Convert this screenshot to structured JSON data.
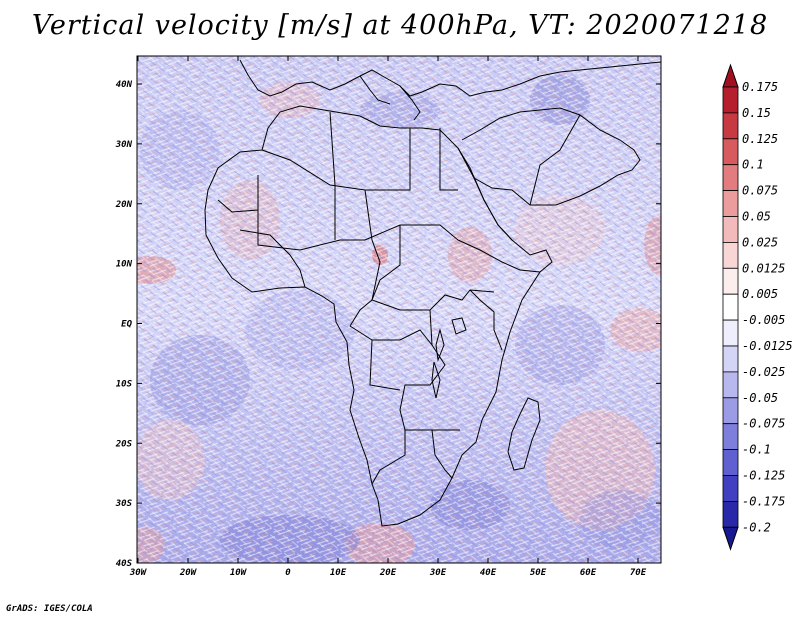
{
  "title": "Vertical velocity [m/s] at 400hPa, VT: 2020071218",
  "credit": "GrADS: IGES/COLA",
  "map": {
    "lat_labels": [
      "40N",
      "30N",
      "20N",
      "10N",
      "EQ",
      "10S",
      "20S",
      "30S",
      "40S"
    ],
    "lon_labels": [
      "30W",
      "20W",
      "10W",
      "0",
      "10E",
      "20E",
      "30E",
      "40E",
      "50E",
      "60E",
      "70E"
    ]
  },
  "colorbar": {
    "labels": [
      "0.175",
      "0.15",
      "0.125",
      "0.1",
      "0.075",
      "0.05",
      "0.025",
      "0.0125",
      "0.005",
      "-0.005",
      "-0.0125",
      "-0.025",
      "-0.05",
      "-0.075",
      "-0.1",
      "-0.125",
      "-0.175",
      "-0.2"
    ],
    "colors": [
      "#a01020",
      "#b51e2c",
      "#c83a42",
      "#d75a5e",
      "#e27c7e",
      "#eb9c9c",
      "#f2baba",
      "#f8d6d6",
      "#fdeeee",
      "#ffffff",
      "#eeeefd",
      "#d4d4f6",
      "#b8b8ee",
      "#9c9ce6",
      "#7e7edc",
      "#6060d0",
      "#4040c0",
      "#2828a8",
      "#181890"
    ]
  }
}
